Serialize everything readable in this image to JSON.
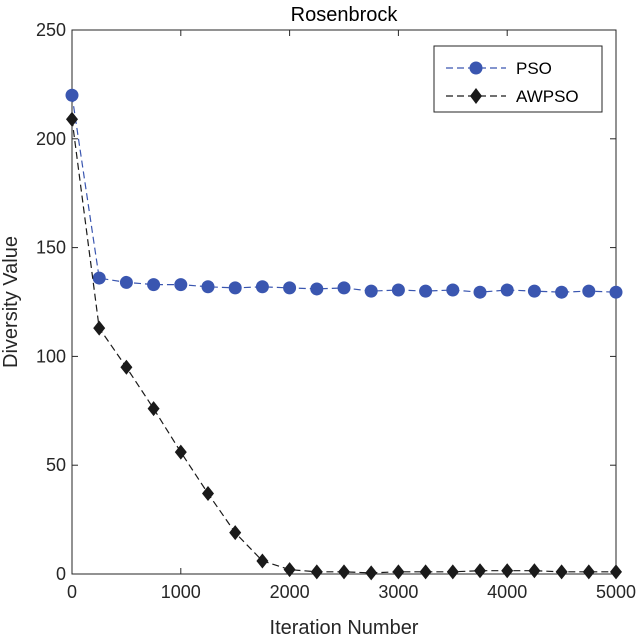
{
  "chart_data": {
    "type": "line",
    "title": "Rosenbrock",
    "xlabel": "Iteration Number",
    "ylabel": "Diversity Value",
    "xlim": [
      0,
      5000
    ],
    "ylim": [
      0,
      250
    ],
    "xticks": [
      0,
      1000,
      2000,
      3000,
      4000,
      5000
    ],
    "yticks": [
      0,
      50,
      100,
      150,
      200,
      250
    ],
    "grid": false,
    "legend_position": "top-right",
    "x": [
      0,
      250,
      500,
      750,
      1000,
      1250,
      1500,
      1750,
      2000,
      2250,
      2500,
      2750,
      3000,
      3250,
      3500,
      3750,
      4000,
      4250,
      4500,
      4750,
      5000
    ],
    "series": [
      {
        "name": "PSO",
        "color": "#3a56b0",
        "marker": "circle",
        "line_style": "dashed",
        "values": [
          220,
          136,
          134,
          133,
          133,
          132,
          131.5,
          132,
          131.5,
          131,
          131.5,
          130,
          130.5,
          130,
          130.5,
          129.5,
          130.5,
          130,
          129.5,
          130,
          129.5
        ]
      },
      {
        "name": "AWPSO",
        "color": "#1a1a1a",
        "marker": "diamond",
        "line_style": "dashed",
        "values": [
          209,
          113,
          95,
          76,
          56,
          37,
          19,
          6,
          2,
          1,
          1,
          0.5,
          1,
          1,
          1,
          1.5,
          1.5,
          1.5,
          1,
          1,
          1
        ]
      }
    ]
  }
}
